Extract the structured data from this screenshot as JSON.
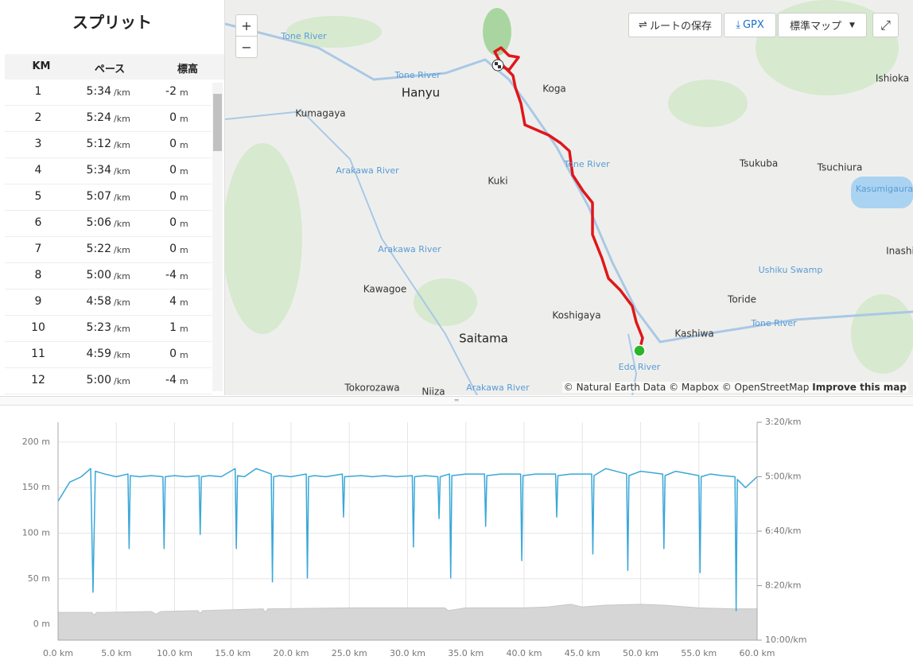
{
  "splits": {
    "title": "スプリット",
    "headers": [
      "KM",
      "ペース",
      "標高"
    ],
    "pace_unit": "/km",
    "elevation_unit": "m",
    "rows": [
      {
        "km": 1,
        "pace": "5:34",
        "elevation": -2
      },
      {
        "km": 2,
        "pace": "5:24",
        "elevation": 0
      },
      {
        "km": 3,
        "pace": "5:12",
        "elevation": 0
      },
      {
        "km": 4,
        "pace": "5:34",
        "elevation": 0
      },
      {
        "km": 5,
        "pace": "5:07",
        "elevation": 0
      },
      {
        "km": 6,
        "pace": "5:06",
        "elevation": 0
      },
      {
        "km": 7,
        "pace": "5:22",
        "elevation": 0
      },
      {
        "km": 8,
        "pace": "5:00",
        "elevation": -4
      },
      {
        "km": 9,
        "pace": "4:58",
        "elevation": 4
      },
      {
        "km": 10,
        "pace": "5:23",
        "elevation": 1
      },
      {
        "km": 11,
        "pace": "4:59",
        "elevation": 0
      },
      {
        "km": 12,
        "pace": "5:00",
        "elevation": -4
      }
    ]
  },
  "map": {
    "zoom_in": "+",
    "zoom_out": "−",
    "save_route": "ルートの保存",
    "gpx": "GPX",
    "map_style": "標準マップ",
    "attribution": "© Natural Earth Data © Mapbox © OpenStreetMap",
    "improve": "Improve this map",
    "labels": [
      "Tone River",
      "Tone River",
      "Hanyu",
      "Koga",
      "Ishioka",
      "Kumagaya",
      "Arakawa River",
      "Kuki",
      "Tone River",
      "Tsukuba",
      "Tsuchiura",
      "Kasumigaura",
      "Inashi",
      "Arakawa River",
      "Ushiku Swamp",
      "Kawagoe",
      "Toride",
      "Koshigaya",
      "Tone River",
      "Saitama",
      "Kashiwa",
      "Edo River",
      "Tokorozawa",
      "Niiza",
      "Arakawa River"
    ]
  },
  "chart_data": {
    "type": "line",
    "grid": true,
    "xlim": [
      0,
      60
    ],
    "xticks": [
      {
        "value": 0,
        "label": "0.0 km"
      },
      {
        "value": 5,
        "label": "5.0 km"
      },
      {
        "value": 10,
        "label": "10.0 km"
      },
      {
        "value": 15,
        "label": "15.0 km"
      },
      {
        "value": 20,
        "label": "20.0 km"
      },
      {
        "value": 25,
        "label": "25.0 km"
      },
      {
        "value": 30,
        "label": "30.0 km"
      },
      {
        "value": 35,
        "label": "35.0 km"
      },
      {
        "value": 40,
        "label": "40.0 km"
      },
      {
        "value": 45,
        "label": "45.0 km"
      },
      {
        "value": 50,
        "label": "50.0 km"
      },
      {
        "value": 55,
        "label": "55.0 km"
      },
      {
        "value": 60,
        "label": "60.0 km"
      }
    ],
    "ylim": [
      -17.4,
      221.7
    ],
    "yticks": [
      {
        "value": 0,
        "label": "0 m"
      },
      {
        "value": 50,
        "label": "50 m"
      },
      {
        "value": 100,
        "label": "100 m"
      },
      {
        "value": 150,
        "label": "150 m"
      },
      {
        "value": 200,
        "label": "200 m"
      }
    ],
    "y2lim": [
      600,
      200
    ],
    "y2ticks": [
      {
        "value": 200,
        "label": "3:20/km"
      },
      {
        "value": 300,
        "label": "5:00/km"
      },
      {
        "value": 400,
        "label": "6:40/km"
      },
      {
        "value": 500,
        "label": "8:20/km"
      },
      {
        "value": 600,
        "label": "10:00/km"
      }
    ],
    "series": [
      {
        "color": "#3aa7d8",
        "axis": "y2",
        "x": [
          0,
          1,
          2,
          2.8,
          3.0,
          3.2,
          4,
          5,
          6.0,
          6.1,
          6.2,
          7,
          8,
          9.0,
          9.1,
          9.2,
          10,
          11,
          12.1,
          12.2,
          12.3,
          13,
          14,
          15.2,
          15.3,
          15.4,
          16,
          17,
          18.3,
          18.4,
          18.5,
          19,
          20,
          21.3,
          21.4,
          21.5,
          22,
          23,
          24.4,
          24.5,
          24.6,
          26,
          27,
          28,
          29,
          30.4,
          30.5,
          30.6,
          31.5,
          32.6,
          32.7,
          32.8,
          33.6,
          33.7,
          33.8,
          35,
          36.6,
          36.7,
          36.8,
          38,
          39.7,
          39.8,
          39.9,
          41,
          42.7,
          42.8,
          42.9,
          44,
          45.8,
          45.9,
          46.0,
          47,
          48.8,
          48.9,
          49.0,
          50,
          51.9,
          52.0,
          52.1,
          53,
          55.0,
          55.1,
          55.2,
          56,
          57,
          58.1,
          58.2,
          58.3,
          59,
          60
        ],
        "values": [
          345,
          310,
          300,
          285,
          512,
          290,
          295,
          300,
          295,
          432,
          298,
          300,
          298,
          300,
          432,
          300,
          298,
          300,
          298,
          406,
          300,
          298,
          300,
          285,
          432,
          298,
          300,
          285,
          295,
          493,
          300,
          298,
          300,
          295,
          486,
          300,
          298,
          300,
          295,
          374,
          300,
          298,
          300,
          298,
          300,
          298,
          429,
          300,
          298,
          300,
          377,
          300,
          295,
          486,
          298,
          295,
          295,
          391,
          298,
          295,
          295,
          454,
          298,
          295,
          295,
          374,
          298,
          295,
          295,
          442,
          298,
          285,
          295,
          472,
          298,
          290,
          295,
          432,
          298,
          290,
          298,
          476,
          300,
          295,
          298,
          300,
          546,
          305,
          320,
          300
        ]
      },
      {
        "color": "#d6d6d6",
        "axis": "y",
        "x": [
          0,
          2.9,
          3.1,
          3.3,
          8,
          8.4,
          8.8,
          12,
          12.2,
          12.4,
          17.6,
          17.8,
          18,
          25,
          30,
          33.2,
          33.5,
          35,
          40,
          42,
          44,
          45,
          47,
          50,
          52,
          55,
          58,
          60
        ],
        "values": [
          13,
          13,
          10,
          13,
          14,
          11,
          14,
          15,
          12,
          15,
          17,
          13,
          17,
          18,
          18,
          18,
          15,
          18,
          18,
          19,
          22,
          19,
          21,
          22,
          21,
          18,
          17,
          17
        ]
      }
    ]
  }
}
